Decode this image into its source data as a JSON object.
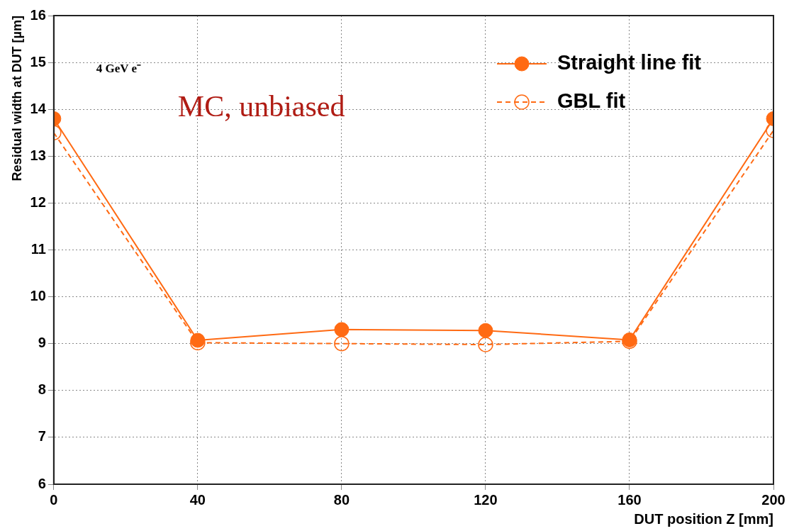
{
  "chart_data": {
    "type": "line",
    "xlabel": "DUT position Z [mm]",
    "ylabel": "Residual width at DUT [µm]",
    "x": [
      0,
      40,
      80,
      120,
      160,
      200
    ],
    "series": [
      {
        "name": "Straight line fit",
        "color": "#ff6a13",
        "values": [
          13.8,
          9.07,
          9.3,
          9.28,
          9.08,
          13.8
        ],
        "line_style": "solid"
      },
      {
        "name": "GBL fit",
        "color": "#ff6a13",
        "values": [
          13.5,
          9.02,
          9.0,
          8.98,
          9.05,
          13.55
        ],
        "line_style": "dashed"
      }
    ],
    "xlim": [
      0,
      200
    ],
    "xticks": [
      0,
      40,
      80,
      120,
      160,
      200
    ],
    "ylim": [
      6,
      16
    ],
    "yticks": [
      6,
      7,
      8,
      9,
      10,
      11,
      12,
      13,
      14,
      15,
      16
    ],
    "grid": true,
    "legend": "top right",
    "marker": "circle",
    "annotations": [
      "4 GeV e⁻",
      "MC, unbiased"
    ]
  }
}
